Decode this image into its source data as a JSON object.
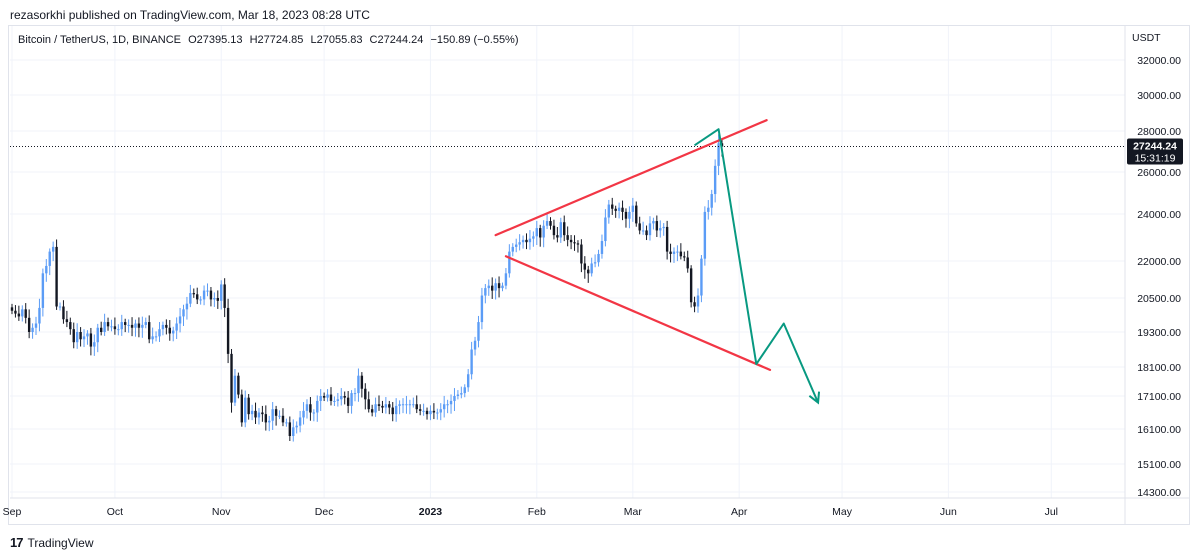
{
  "publisher": "rezasorkhi published on TradingView.com, Mar 18, 2023 08:28 UTC",
  "brand": "TradingView",
  "legend": {
    "symbol": "Bitcoin / TetherUS, 1D, BINANCE",
    "open": "O27395.13",
    "high": "H27724.85",
    "low": "L27055.83",
    "close": "C27244.24",
    "change": "−150.89 (−0.55%)"
  },
  "colors": {
    "up": "#5b9cf6",
    "down": "#131722",
    "wedge": "#f23645",
    "projection": "#089981",
    "grid": "#e0e3eb"
  },
  "chart_data": {
    "type": "candlestick",
    "currency_label": "USDT",
    "last_price": "27244.24",
    "countdown": "15:31:19",
    "y_ticks": [
      "32000.00",
      "30000.00",
      "28000.00",
      "26000.00",
      "24000.00",
      "22000.00",
      "20500.00",
      "19300.00",
      "18100.00",
      "17100.00",
      "16100.00",
      "15100.00",
      "14300.00"
    ],
    "x_ticks": [
      {
        "label": "Sep",
        "date": "2022-09-01"
      },
      {
        "label": "Oct",
        "date": "2022-10-01"
      },
      {
        "label": "Nov",
        "date": "2022-11-01"
      },
      {
        "label": "Dec",
        "date": "2022-12-01"
      },
      {
        "label": "2023",
        "date": "2023-01-01",
        "bold": true
      },
      {
        "label": "Feb",
        "date": "2023-02-01"
      },
      {
        "label": "Mar",
        "date": "2023-03-01"
      },
      {
        "label": "Apr",
        "date": "2023-04-01"
      },
      {
        "label": "May",
        "date": "2023-05-01"
      },
      {
        "label": "Jun",
        "date": "2023-06-01"
      },
      {
        "label": "Jul",
        "date": "2023-07-01"
      }
    ],
    "start_date": "2022-09-01",
    "closes": [
      20050,
      19950,
      19850,
      20100,
      19800,
      19300,
      19450,
      19600,
      20150,
      21500,
      21800,
      22400,
      22600,
      20200,
      20200,
      19750,
      19650,
      19400,
      18950,
      19300,
      19050,
      19150,
      19250,
      18800,
      18950,
      19450,
      19300,
      19650,
      19500,
      19500,
      19400,
      19400,
      19650,
      19550,
      19550,
      19450,
      19600,
      19450,
      19550,
      19650,
      19050,
      19150,
      19150,
      19400,
      19550,
      19450,
      19250,
      19350,
      19600,
      19850,
      20100,
      20300,
      20700,
      20650,
      20450,
      20450,
      20800,
      20800,
      20450,
      20500,
      20400,
      21050,
      20150,
      18550,
      16900,
      17800,
      17150,
      16300,
      17050,
      16550,
      16650,
      16450,
      16600,
      16550,
      16300,
      16350,
      16700,
      16500,
      16500,
      16300,
      16300,
      15900,
      16150,
      16200,
      16450,
      16650,
      16850,
      16600,
      16600,
      16950,
      17100,
      17050,
      17150,
      16950,
      16950,
      17000,
      17100,
      17050,
      16800,
      17200,
      17200,
      17800,
      17350,
      17000,
      16700,
      16600,
      16850,
      16800,
      16750,
      16850,
      16750,
      16550,
      16800,
      16850,
      16850,
      16850,
      16850,
      16850,
      16700,
      16650,
      16650,
      16550,
      16650,
      16600,
      16600,
      16700,
      16850,
      16850,
      16950,
      17100,
      17150,
      17200,
      17400,
      17850,
      18700,
      19000,
      19650,
      20600,
      20900,
      21000,
      20800,
      21100,
      20900,
      21000,
      21500,
      22400,
      22600,
      22700,
      22800,
      22900,
      22800,
      22950,
      23050,
      23400,
      23000,
      23500,
      23700,
      23500,
      23100,
      23000,
      23650,
      23100,
      22900,
      22800,
      22750,
      22700,
      21900,
      21650,
      21500,
      21900,
      21950,
      22300,
      22850,
      23850,
      24450,
      24250,
      24150,
      24300,
      24100,
      23800,
      24100,
      24400,
      23600,
      23300,
      23300,
      23100,
      23600,
      23700,
      23300,
      23400,
      23450,
      22400,
      22300,
      22400,
      22400,
      22200,
      22150,
      21700,
      20350,
      20200,
      20600,
      22100,
      24100,
      24300,
      24950,
      26300,
      27400,
      27244
    ]
  },
  "wedge_lines": [
    {
      "name": "upper",
      "start": {
        "date": "2023-01-20",
        "price": 23100
      },
      "end": {
        "date": "2023-04-09",
        "price": 28600
      }
    },
    {
      "name": "lower",
      "start": {
        "date": "2023-01-23",
        "price": 22200
      },
      "end": {
        "date": "2023-04-10",
        "price": 18000
      }
    }
  ],
  "projection": [
    {
      "date": "2023-03-19",
      "price": 27300
    },
    {
      "date": "2023-03-26",
      "price": 28100
    },
    {
      "date": "2023-04-06",
      "price": 18200
    },
    {
      "date": "2023-04-14",
      "price": 19600
    },
    {
      "date": "2023-04-24",
      "price": 16900
    }
  ]
}
